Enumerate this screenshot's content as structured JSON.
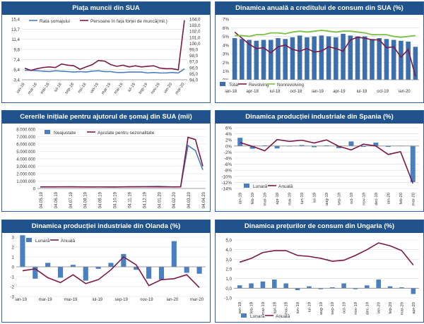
{
  "colors": {
    "header_bg": "#20528c",
    "bar": "#4a7fc1",
    "maroon": "#7b1a45",
    "green": "#7ac143",
    "grid": "#d9d9d9"
  },
  "chart_data": [
    {
      "type": "line",
      "title": "Piața muncii din SUA",
      "categories": [
        "ian-18",
        "feb-18",
        "mar-18",
        "apr-18",
        "mai-18",
        "iun-18",
        "iul-18",
        "aug-18",
        "sep-18",
        "oct-18",
        "nov-18",
        "dec-18",
        "ian-19",
        "feb-19",
        "mar-19",
        "apr-19",
        "mai-19",
        "iun-19",
        "iul-19",
        "aug-19",
        "sep-19",
        "oct-19",
        "nov-19",
        "dec-19",
        "ian-20",
        "feb-20",
        "mar-20"
      ],
      "xtick_labels": [
        "ian-18",
        "mar-18",
        "mai-18",
        "iul-18",
        "sep-18",
        "noi-18",
        "ian-19",
        "mar-19",
        "mai-19",
        "iul-19",
        "sep-19",
        "nov-19",
        "ian-20",
        "mar-20"
      ],
      "series": [
        {
          "name": "Rata șomajului",
          "axis": "left",
          "values": [
            4.1,
            4.1,
            4.0,
            3.9,
            3.8,
            4.0,
            3.9,
            3.8,
            3.7,
            3.8,
            3.7,
            3.9,
            4.0,
            3.8,
            3.8,
            3.6,
            3.6,
            3.7,
            3.7,
            3.7,
            3.5,
            3.6,
            3.5,
            3.5,
            3.6,
            3.5,
            4.4
          ]
        },
        {
          "name": "Persoane în fața forței de muncă(mil.)",
          "axis": "right",
          "values": [
            95.6,
            95.2,
            95.5,
            95.7,
            95.8,
            95.7,
            96.3,
            96.1,
            96.0,
            95.4,
            95.8,
            96.2,
            96.9,
            96.8,
            96.2,
            95.9,
            96.1,
            95.8,
            96.0,
            95.8,
            95.9,
            96.0,
            95.6,
            95.5,
            95.5,
            95.3,
            103.8
          ]
        }
      ],
      "ylim_left": [
        2.0,
        15.4
      ],
      "yticks_left": [
        "15,4",
        "13,7",
        "11,4",
        "9,8",
        "7,4",
        "5,4",
        "3,4"
      ],
      "ylim_right": [
        93.6,
        104.0
      ],
      "yticks_right": [
        "104,0",
        "103,0",
        "102,0",
        "101,0",
        "100,0",
        "99,0",
        "98,0",
        "97,0",
        "96,0",
        "95,0",
        "94,0"
      ]
    },
    {
      "type": "bar",
      "title": "Dinamica anuală a creditului de consum din SUA (%)",
      "categories": [
        "ian-18",
        "feb-18",
        "mar-18",
        "apr-18",
        "mai-18",
        "iun-18",
        "iul-18",
        "aug-18",
        "sep-18",
        "oct-18",
        "nov-18",
        "dec-18",
        "ian-19",
        "feb-19",
        "mar-19",
        "apr-19",
        "mai-19",
        "iun-19",
        "iul-19",
        "aug-19",
        "sep-19",
        "oct-19",
        "nov-19",
        "dec-19",
        "ian-20",
        "feb-20"
      ],
      "xtick_labels": [
        "ian-18",
        "apr-18",
        "iul-18",
        "oct-18",
        "ian-19",
        "apr-19",
        "iul-19",
        "oct-19",
        "ian-20"
      ],
      "series": [
        {
          "name": "Total",
          "kind": "bar",
          "values": [
            4.8,
            4.7,
            4.6,
            4.5,
            4.6,
            4.6,
            4.8,
            4.7,
            4.9,
            5.1,
            4.9,
            5.0,
            5.1,
            5.0,
            4.9,
            5.3,
            5.1,
            5.0,
            5.0,
            4.7,
            4.8,
            4.7,
            4.6,
            4.5,
            4.4,
            3.8
          ]
        },
        {
          "name": "Revolving",
          "kind": "line",
          "values": [
            5.5,
            4.8,
            4.1,
            3.6,
            3.7,
            3.1,
            3.8,
            4.0,
            3.5,
            3.3,
            3.6,
            3.2,
            3.3,
            3.8,
            3.6,
            3.3,
            4.6,
            4.9,
            4.8,
            4.6,
            4.6,
            3.7,
            3.8,
            2.6,
            3.5,
            0.4
          ]
        },
        {
          "name": "Nonrevolving",
          "kind": "line",
          "values": [
            5.1,
            5.1,
            5.0,
            5.2,
            5.2,
            5.4,
            5.4,
            5.3,
            5.5,
            5.6,
            5.5,
            5.6,
            5.7,
            5.6,
            5.5,
            5.6,
            5.6,
            5.5,
            5.4,
            5.2,
            5.2,
            5.2,
            5.0,
            4.9,
            5.0,
            5.1
          ]
        }
      ],
      "ylim": [
        0,
        7
      ],
      "yticks": [
        "0%",
        "1%",
        "2%",
        "3%",
        "4%",
        "5%",
        "6%",
        "7%"
      ]
    },
    {
      "type": "line",
      "title": "Cererile inițiale pentru ajutorul de șomaj din SUA (mii)",
      "categories": [
        "04.05.19",
        "04.06.19",
        "04.07.19",
        "04.08.19",
        "04.09.19",
        "04.10.19",
        "04.11.19",
        "04.12.19",
        "04.01.20",
        "04.02.20",
        "04.03.20",
        "04.04.20"
      ],
      "x": [
        0,
        1,
        2,
        3,
        4,
        5,
        6,
        7,
        8,
        9,
        9.5,
        10,
        10.5,
        11
      ],
      "series": [
        {
          "name": "Neajustate",
          "values": [
            200000,
            205000,
            250000,
            215000,
            205000,
            200000,
            230000,
            240000,
            280000,
            210000,
            220000,
            5800000,
            5100000,
            2500000
          ]
        },
        {
          "name": "Ajustate pentru sezonalitate",
          "values": [
            225000,
            220000,
            215000,
            210000,
            215000,
            210000,
            220000,
            225000,
            220000,
            215000,
            230000,
            6900000,
            6600000,
            3000000
          ]
        }
      ],
      "ylim": [
        0,
        8000000
      ],
      "yticks": [
        "0",
        "1.000.000",
        "2.000.000",
        "3.000.000",
        "4.000.000",
        "5.000.000",
        "6.000.000",
        "7.000.000",
        "8.000.000"
      ]
    },
    {
      "type": "bar",
      "title": "Dinamica producției industriale din Spania (%)",
      "categories": [
        "ian-19",
        "feb-19",
        "mar-19",
        "apr-19",
        "mai-19",
        "iun-19",
        "iul-19",
        "aug-19",
        "sep-19",
        "oct-19",
        "nov-19",
        "dec-19",
        "ian-20",
        "feb-20",
        "mar-20"
      ],
      "xtick_labels": [
        "ian-19",
        "feb-19",
        "mar-19",
        "apr-19",
        "mai-19",
        "iun-19",
        "iul-19",
        "aug-19",
        "sep-19",
        "oct-19",
        "nov-19",
        "dec-19",
        "ian-20",
        "feb-20",
        "mar-20"
      ],
      "series": [
        {
          "name": "Lunară",
          "kind": "bar",
          "values": [
            2.7,
            -0.9,
            0.2,
            -0.8,
            -0.1,
            0.3,
            -0.4,
            0.2,
            -0.7,
            1.5,
            -0.3,
            1.1,
            -0.3,
            0.1,
            -11.9
          ]
        },
        {
          "name": "Anuală",
          "kind": "line",
          "values": [
            1.1,
            -0.1,
            -1.6,
            2.1,
            1.5,
            1.9,
            1.0,
            2.0,
            -0.1,
            -1.3,
            0.6,
            0.0,
            -2.8,
            -1.9,
            -12.3
          ]
        }
      ],
      "ylim": [
        -14,
        6
      ],
      "yticks": [
        "6%",
        "4%",
        "2%",
        "0%",
        "-2%",
        "-4%",
        "-6%",
        "-8%",
        "-10%",
        "-12%",
        "-14%"
      ]
    },
    {
      "type": "bar",
      "title": "Dinamica producției industriale din Olanda (%)",
      "categories": [
        "ian-19",
        "feb-19",
        "mar-19",
        "apr-19",
        "mai-19",
        "iun-19",
        "iul-19",
        "aug-19",
        "sep-19",
        "oct-19",
        "nov-19",
        "dec-19",
        "ian-20",
        "feb-20",
        "mar-20"
      ],
      "xtick_labels": [
        "ian-19",
        "mar-19",
        "mai-19",
        "iul-19",
        "sep-19",
        "nov-19",
        "ian-20",
        "mar-20"
      ],
      "series": [
        {
          "name": "Lunară",
          "kind": "bar",
          "values": [
            3.2,
            -1.2,
            0.4,
            -1.1,
            0.2,
            -1.4,
            -0.2,
            0.4,
            1.3,
            -0.3,
            -1.2,
            -1.3,
            2.6,
            -0.6,
            -0.7
          ]
        },
        {
          "name": "Anuală",
          "kind": "line",
          "values": [
            -0.4,
            -0.2,
            -1.1,
            -1.6,
            -0.8,
            -1.7,
            -1.3,
            -0.3,
            1.0,
            0.2,
            -1.9,
            -1.3,
            -1.2,
            -0.8,
            -2.1
          ]
        }
      ],
      "ylim": [
        -3,
        3
      ],
      "yticks": [
        "3",
        "2",
        "1",
        "0",
        "-1",
        "-2",
        "-3"
      ]
    },
    {
      "type": "bar",
      "title": "Dinamica prețurilor de consum din Ungaria (%)",
      "categories": [
        "ian-19",
        "feb-19",
        "mar-19",
        "apr-19",
        "mai-19",
        "iun-19",
        "iul-19",
        "aug-19",
        "sep-19",
        "oct-19",
        "nov-19",
        "dec-19",
        "ian-20",
        "feb-20",
        "mar-20",
        "apr-20"
      ],
      "xtick_labels": [
        "ian-19",
        "feb-19",
        "mar-19",
        "apr-19",
        "mai-19",
        "iun-19",
        "iul-19",
        "aug-19",
        "sep-19",
        "oct-19",
        "nov-19",
        "dec-19",
        "ian-20",
        "feb-20",
        "mar-20",
        "apr-20"
      ],
      "series": [
        {
          "name": "Lunară",
          "kind": "bar",
          "values": [
            0.3,
            0.5,
            0.7,
            0.9,
            0.5,
            -0.2,
            0.2,
            -0.1,
            0.1,
            0.5,
            -0.1,
            0.3,
            0.9,
            0.2,
            0.1,
            -0.6
          ]
        },
        {
          "name": "Anuală",
          "kind": "line",
          "values": [
            2.7,
            3.1,
            3.7,
            3.9,
            3.9,
            3.4,
            3.3,
            3.1,
            2.8,
            2.9,
            3.4,
            4.0,
            4.7,
            4.4,
            3.9,
            2.4
          ]
        }
      ],
      "ylim": [
        -1,
        5
      ],
      "yticks": [
        "5,0",
        "4,0",
        "3,0",
        "2,0",
        "1,0",
        "0,0",
        "-1,0"
      ]
    }
  ]
}
